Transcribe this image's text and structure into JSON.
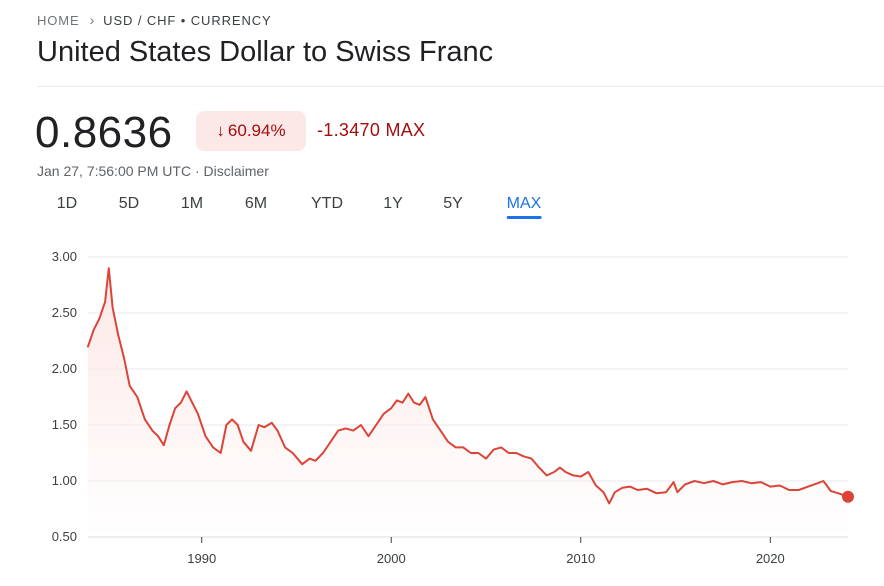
{
  "breadcrumb": {
    "home": "HOME",
    "current": "USD / CHF • CURRENCY"
  },
  "title": "United States Dollar to Swiss Franc",
  "quote": {
    "price": "0.8636",
    "change_pct": "60.94%",
    "change_abs": "-1.3470 MAX",
    "timestamp": "Jan 27, 7:56:00 PM UTC · Disclaimer"
  },
  "ranges": [
    "1D",
    "5D",
    "1M",
    "6M",
    "YTD",
    "1Y",
    "5Y",
    "MAX"
  ],
  "active_range": "MAX",
  "colors": {
    "line": "#db4437",
    "fill": "#fce8e6",
    "accent": "#1a73e8",
    "negative": "#a50e0e"
  },
  "icons": {
    "breadcrumb_sep": "chevron-right-icon",
    "change": "arrow-down-icon"
  },
  "chart_data": {
    "type": "area",
    "title": "",
    "xlabel": "",
    "ylabel": "",
    "ylim": [
      0.5,
      3.0
    ],
    "xlim": [
      1984.0,
      2024.1
    ],
    "yticks": [
      "3.00",
      "2.50",
      "2.00",
      "1.50",
      "1.00",
      "0.50"
    ],
    "xticks": [
      "1990",
      "2000",
      "2010",
      "2020"
    ],
    "grid": "horizontal",
    "series": [
      {
        "x": [
          1984.0,
          1984.3,
          1984.6,
          1984.9,
          1985.1,
          1985.3,
          1985.6,
          1985.9,
          1986.2,
          1986.6,
          1987.0,
          1987.4,
          1987.7,
          1988.0,
          1988.3,
          1988.6,
          1988.9,
          1989.2,
          1989.5,
          1989.8,
          1990.2,
          1990.6,
          1991.0,
          1991.3,
          1991.6,
          1991.9,
          1992.2,
          1992.6,
          1993.0,
          1993.3,
          1993.7,
          1994.0,
          1994.4,
          1994.8,
          1995.3,
          1995.7,
          1996.0,
          1996.4,
          1996.8,
          1997.2,
          1997.6,
          1998.0,
          1998.4,
          1998.8,
          1999.2,
          1999.6,
          2000.0,
          2000.3,
          2000.6,
          2000.9,
          2001.2,
          2001.5,
          2001.8,
          2002.2,
          2002.6,
          2003.0,
          2003.4,
          2003.8,
          2004.2,
          2004.6,
          2005.0,
          2005.4,
          2005.8,
          2006.2,
          2006.6,
          2007.0,
          2007.4,
          2007.8,
          2008.2,
          2008.6,
          2008.9,
          2009.2,
          2009.6,
          2010.0,
          2010.4,
          2010.8,
          2011.2,
          2011.5,
          2011.8,
          2012.2,
          2012.6,
          2013.0,
          2013.5,
          2014.0,
          2014.5,
          2014.9,
          2015.1,
          2015.5,
          2016.0,
          2016.5,
          2017.0,
          2017.5,
          2018.0,
          2018.5,
          2019.0,
          2019.5,
          2020.0,
          2020.5,
          2021.0,
          2021.5,
          2022.0,
          2022.5,
          2022.8,
          2023.2,
          2023.6,
          2024.1
        ],
        "values": [
          2.2,
          2.35,
          2.45,
          2.6,
          2.9,
          2.55,
          2.3,
          2.1,
          1.85,
          1.75,
          1.55,
          1.45,
          1.4,
          1.32,
          1.5,
          1.65,
          1.7,
          1.8,
          1.7,
          1.6,
          1.4,
          1.3,
          1.25,
          1.5,
          1.55,
          1.5,
          1.35,
          1.27,
          1.5,
          1.48,
          1.52,
          1.45,
          1.3,
          1.25,
          1.15,
          1.2,
          1.18,
          1.25,
          1.35,
          1.45,
          1.47,
          1.45,
          1.5,
          1.4,
          1.5,
          1.6,
          1.65,
          1.72,
          1.7,
          1.78,
          1.7,
          1.68,
          1.75,
          1.55,
          1.45,
          1.35,
          1.3,
          1.3,
          1.25,
          1.25,
          1.2,
          1.28,
          1.3,
          1.25,
          1.25,
          1.22,
          1.2,
          1.12,
          1.05,
          1.08,
          1.12,
          1.08,
          1.05,
          1.04,
          1.08,
          0.96,
          0.9,
          0.8,
          0.9,
          0.94,
          0.95,
          0.92,
          0.93,
          0.89,
          0.9,
          0.99,
          0.9,
          0.97,
          1.0,
          0.98,
          1.0,
          0.97,
          0.99,
          1.0,
          0.98,
          0.99,
          0.95,
          0.96,
          0.92,
          0.92,
          0.95,
          0.98,
          1.0,
          0.91,
          0.89,
          0.86
        ]
      }
    ]
  }
}
